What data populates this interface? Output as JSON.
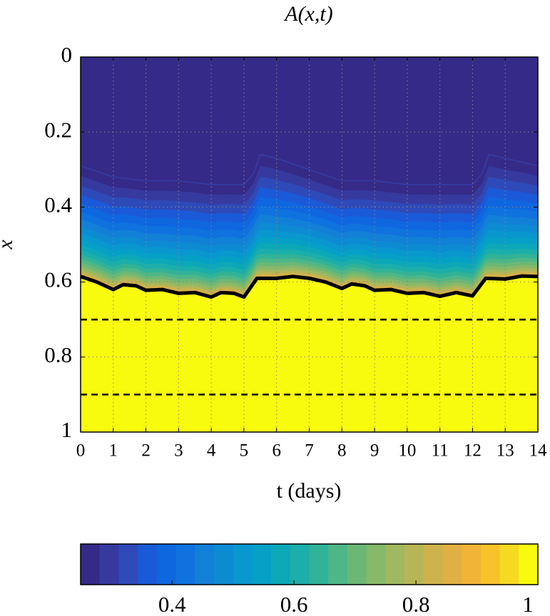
{
  "chart_data": {
    "type": "contour",
    "title": "A(x,t)",
    "x_label": "t (days)",
    "y_label": "x",
    "xlim": [
      0,
      14
    ],
    "xticks": [
      0,
      1,
      2,
      3,
      4,
      5,
      6,
      7,
      8,
      9,
      10,
      11,
      12,
      13,
      14
    ],
    "xtick_highlight": {
      "ticks": [
        1,
        8
      ],
      "color": "#0000ff"
    },
    "ylim": [
      0,
      1
    ],
    "y_reversed": true,
    "yticks": [
      0,
      0.2,
      0.4,
      0.6,
      0.8,
      1
    ],
    "grid": true,
    "front": {
      "color": "#000000",
      "x": [
        0,
        0.5,
        1,
        1.3,
        1.7,
        2,
        2.5,
        3,
        3.5,
        4,
        4.3,
        4.7,
        5,
        5.4,
        6,
        6.5,
        7,
        7.5,
        8,
        8.3,
        8.7,
        9,
        9.5,
        10,
        10.5,
        11,
        11.5,
        12,
        12.4,
        13,
        13.5,
        14
      ],
      "values": [
        0.585,
        0.6,
        0.62,
        0.607,
        0.61,
        0.622,
        0.62,
        0.63,
        0.628,
        0.64,
        0.628,
        0.63,
        0.64,
        0.59,
        0.59,
        0.585,
        0.59,
        0.6,
        0.617,
        0.605,
        0.61,
        0.622,
        0.62,
        0.63,
        0.628,
        0.638,
        0.628,
        0.637,
        0.59,
        0.592,
        0.584,
        0.585
      ]
    },
    "contour_top": {
      "x": [
        0,
        1,
        2,
        3,
        4,
        5,
        5.3,
        5.5,
        6,
        7,
        8,
        9,
        10,
        11,
        12,
        12.3,
        12.5,
        13,
        14
      ],
      "values": [
        0.29,
        0.32,
        0.33,
        0.33,
        0.34,
        0.34,
        0.31,
        0.26,
        0.27,
        0.3,
        0.33,
        0.33,
        0.34,
        0.34,
        0.34,
        0.31,
        0.26,
        0.27,
        0.29
      ]
    },
    "hlines": [
      0.7,
      0.9
    ],
    "colorbar": {
      "lim": [
        0.25,
        1
      ],
      "ticks": [
        0.4,
        0.6,
        0.8,
        1
      ],
      "colors": [
        "#352a87",
        "#363a9f",
        "#2e4ab9",
        "#1a5ad8",
        "#0f67e0",
        "#0f72df",
        "#1380d7",
        "#0d8bd2",
        "#0897cf",
        "#06a0c6",
        "#0ca8b8",
        "#1baeaa",
        "#31b398",
        "#4eb787",
        "#6bb876",
        "#86b96a",
        "#a0b85f",
        "#b8b556",
        "#ceb24c",
        "#e1b042",
        "#f1b437",
        "#f8c22b",
        "#f6d921",
        "#f9fb0e"
      ]
    }
  }
}
